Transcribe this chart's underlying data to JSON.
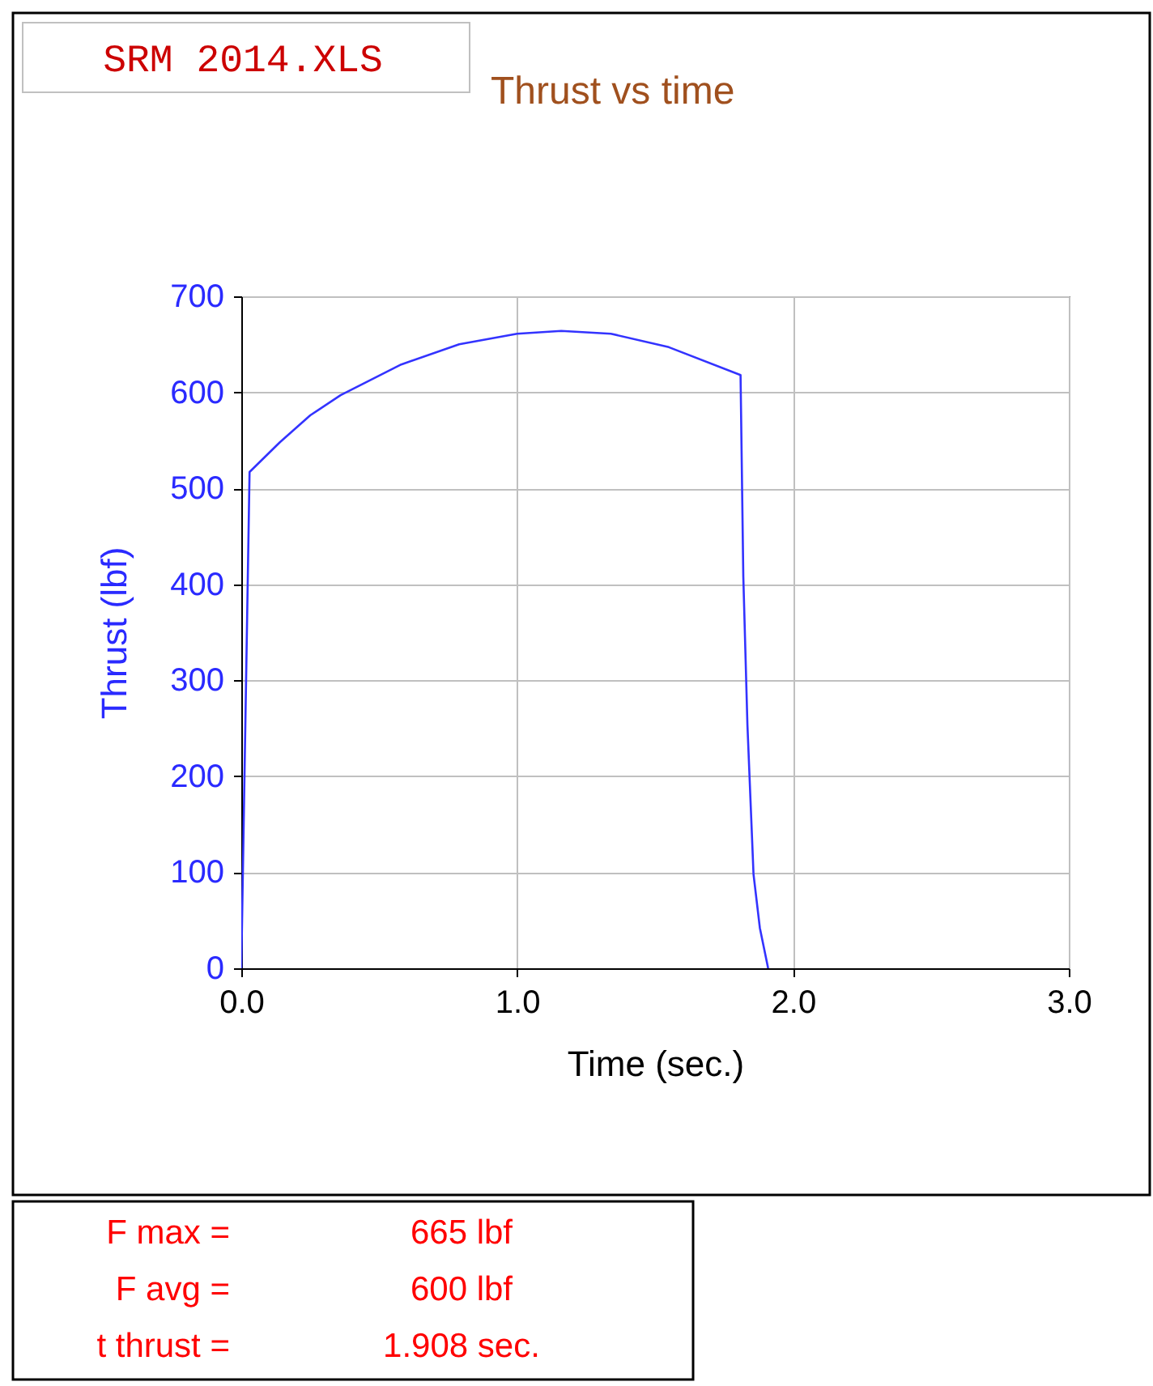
{
  "chart_data": {
    "type": "line",
    "title": "Thrust vs time",
    "xlabel": "Time  (sec.)",
    "ylabel": "Thrust  (lbf)",
    "x": [
      0,
      0.03,
      0.14,
      0.25,
      0.36,
      0.58,
      0.79,
      1.0,
      1.16,
      1.34,
      1.55,
      1.81,
      1.82,
      1.835,
      1.857,
      1.88,
      1.91
    ],
    "series": [
      {
        "color": "#3333ff",
        "values": [
          0,
          517,
          548,
          576,
          597,
          629,
          650,
          661,
          664,
          661,
          647,
          618,
          408,
          253,
          98,
          42,
          0
        ]
      }
    ],
    "xlim": [
      0,
      3
    ],
    "xticks": [
      {
        "value": 0,
        "label": "0.0"
      },
      {
        "value": 1,
        "label": "1.0"
      },
      {
        "value": 2,
        "label": "2.0"
      },
      {
        "value": 3,
        "label": "3.0"
      }
    ],
    "ylim": [
      0,
      700
    ],
    "yticks": [
      0,
      100,
      200,
      300,
      400,
      500,
      600,
      700
    ],
    "grid": true,
    "marker": "none",
    "line_style": "solid",
    "annotations": [
      "SRM 2014.XLS",
      "F max =",
      "665 lbf",
      "F avg =",
      "600 lbf",
      "t thrust =",
      "1.908 sec."
    ]
  }
}
